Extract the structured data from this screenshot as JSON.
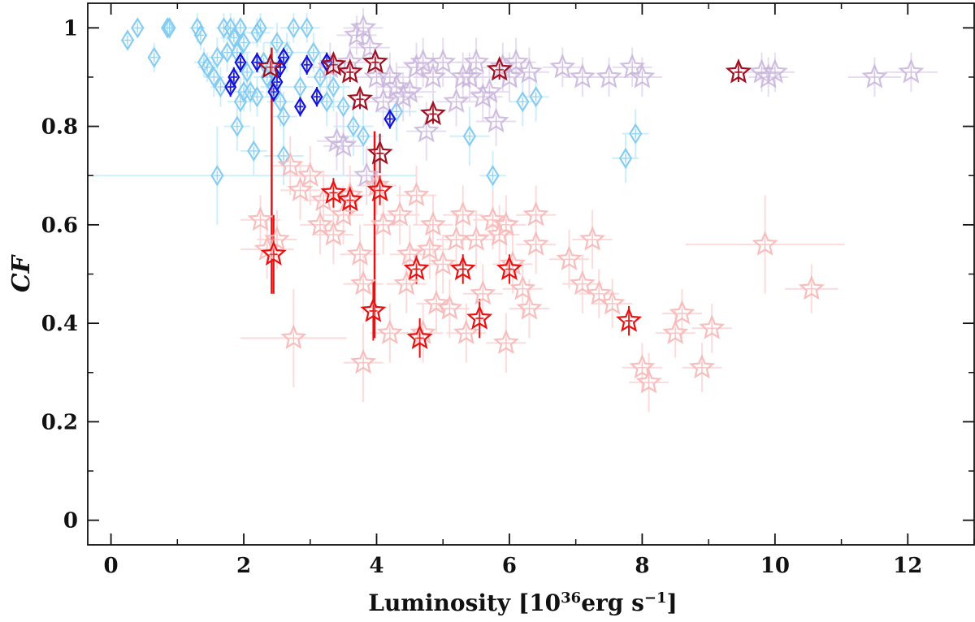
{
  "chart_data": {
    "type": "scatter",
    "xlabel_main": "Luminosity [10",
    "xlabel_exp": "36",
    "xlabel_unit": "erg s",
    "xlabel_unit_exp": "−1",
    "xlabel_close": "]",
    "ylabel": "CF",
    "xlim": [
      -0.35,
      13.0
    ],
    "ylim": [
      -0.05,
      1.05
    ],
    "xticks": [
      0,
      2,
      4,
      6,
      8,
      10,
      12
    ],
    "yticks": [
      0,
      0.2,
      0.4,
      0.6,
      0.8,
      1
    ],
    "ytick_labels": [
      "0",
      "0.2",
      "0.4",
      "0.6",
      "0.8",
      "1"
    ],
    "grid": false,
    "legend": "none",
    "colors": {
      "light_blue": "#7cc8f0",
      "blue": "#1010d8",
      "lavender": "#c8b4dc",
      "dark_red": "#a01020",
      "pink": "#f8b8b8",
      "red": "#e81010"
    },
    "series": [
      {
        "marker": "diamond",
        "color": "#7cc8f0",
        "errcolor": "#c8eefc",
        "opacity": 0.9,
        "size": 11,
        "points": [
          [
            0.25,
            0.975,
            0.1,
            0.02
          ],
          [
            0.4,
            1.0,
            0.1,
            0.02
          ],
          [
            0.65,
            0.94,
            0.1,
            0.03
          ],
          [
            0.85,
            1.0,
            0.08,
            0.02
          ],
          [
            0.88,
            1.0,
            0.08,
            0.02
          ],
          [
            1.3,
            1.0,
            0.12,
            0.03
          ],
          [
            1.35,
            0.985,
            0.1,
            0.03
          ],
          [
            1.4,
            0.93,
            0.15,
            0.03
          ],
          [
            1.45,
            0.92,
            0.15,
            0.03
          ],
          [
            1.55,
            0.9,
            0.15,
            0.04
          ],
          [
            1.6,
            0.94,
            0.15,
            0.04
          ],
          [
            1.65,
            0.88,
            0.15,
            0.04
          ],
          [
            1.7,
            1.0,
            0.12,
            0.03
          ],
          [
            1.75,
            0.95,
            0.15,
            0.04
          ],
          [
            1.8,
            1.0,
            0.15,
            0.03
          ],
          [
            1.85,
            0.98,
            0.2,
            0.04
          ],
          [
            1.9,
            0.95,
            0.2,
            0.04
          ],
          [
            1.9,
            0.8,
            0.2,
            0.05
          ],
          [
            1.95,
            0.85,
            0.2,
            0.05
          ],
          [
            2.0,
            0.87,
            0.2,
            0.04
          ],
          [
            2.05,
            0.91,
            0.2,
            0.04
          ],
          [
            2.1,
            0.87,
            0.2,
            0.04
          ],
          [
            2.15,
            0.75,
            0.2,
            0.05
          ],
          [
            2.2,
            0.86,
            0.2,
            0.04
          ],
          [
            2.25,
            1.0,
            0.2,
            0.03
          ],
          [
            2.3,
            0.93,
            0.2,
            0.04
          ],
          [
            2.35,
            0.9,
            0.2,
            0.04
          ],
          [
            2.4,
            0.92,
            0.2,
            0.05
          ],
          [
            2.5,
            0.97,
            0.2,
            0.04
          ],
          [
            2.55,
            0.85,
            0.2,
            0.05
          ],
          [
            2.6,
            0.82,
            0.2,
            0.05
          ],
          [
            2.65,
            0.95,
            0.2,
            0.04
          ],
          [
            2.75,
            1.0,
            0.2,
            0.03
          ],
          [
            2.85,
            0.88,
            0.2,
            0.05
          ],
          [
            2.95,
            1.0,
            0.2,
            0.03
          ],
          [
            3.05,
            0.95,
            0.2,
            0.04
          ],
          [
            3.15,
            0.9,
            0.2,
            0.05
          ],
          [
            3.25,
            0.85,
            0.2,
            0.05
          ],
          [
            3.35,
            0.88,
            0.25,
            0.05
          ],
          [
            3.5,
            0.84,
            0.3,
            0.06
          ],
          [
            3.65,
            0.8,
            0.3,
            0.06
          ],
          [
            3.8,
            0.78,
            0.3,
            0.06
          ],
          [
            1.6,
            0.7,
            3.0,
            0.1
          ],
          [
            2.6,
            0.74,
            0.3,
            0.06
          ],
          [
            4.3,
            0.83,
            0.3,
            0.06
          ],
          [
            5.4,
            0.78,
            0.3,
            0.06
          ],
          [
            5.75,
            0.7,
            0.2,
            0.05
          ],
          [
            6.2,
            0.85,
            0.2,
            0.05
          ],
          [
            6.4,
            0.86,
            0.2,
            0.05
          ],
          [
            7.75,
            0.735,
            0.2,
            0.05
          ],
          [
            7.9,
            0.785,
            0.2,
            0.05
          ],
          [
            2.0,
            0.97,
            0.2,
            0.04
          ],
          [
            2.2,
            0.99,
            0.2,
            0.03
          ],
          [
            1.95,
            1.0,
            0.15,
            0.02
          ],
          [
            2.45,
            0.88,
            0.2,
            0.04
          ]
        ]
      },
      {
        "marker": "star",
        "color": "#c8b4dc",
        "errcolor": "#e4d8ee",
        "opacity": 0.85,
        "size": 14,
        "points": [
          [
            3.6,
            0.93,
            0.3,
            0.04
          ],
          [
            3.7,
            0.985,
            0.3,
            0.04
          ],
          [
            3.8,
            1.0,
            0.3,
            0.04
          ],
          [
            3.9,
            0.96,
            0.3,
            0.04
          ],
          [
            4.0,
            0.9,
            0.3,
            0.05
          ],
          [
            4.1,
            0.85,
            0.3,
            0.05
          ],
          [
            4.2,
            0.9,
            0.3,
            0.05
          ],
          [
            4.3,
            0.88,
            0.3,
            0.05
          ],
          [
            4.5,
            0.87,
            0.4,
            0.05
          ],
          [
            4.6,
            0.92,
            0.3,
            0.05
          ],
          [
            4.7,
            0.93,
            0.3,
            0.05
          ],
          [
            4.85,
            0.9,
            0.3,
            0.05
          ],
          [
            5.0,
            0.93,
            0.3,
            0.05
          ],
          [
            5.2,
            0.85,
            0.3,
            0.05
          ],
          [
            5.4,
            0.9,
            0.3,
            0.05
          ],
          [
            5.5,
            0.93,
            0.3,
            0.05
          ],
          [
            5.7,
            0.87,
            0.3,
            0.05
          ],
          [
            5.8,
            0.81,
            0.3,
            0.05
          ],
          [
            5.9,
            0.92,
            0.3,
            0.05
          ],
          [
            6.0,
            0.9,
            0.3,
            0.05
          ],
          [
            6.1,
            0.93,
            0.3,
            0.05
          ],
          [
            6.3,
            0.91,
            0.3,
            0.05
          ],
          [
            6.8,
            0.92,
            0.3,
            0.04
          ],
          [
            7.1,
            0.9,
            0.3,
            0.04
          ],
          [
            7.5,
            0.9,
            0.3,
            0.04
          ],
          [
            7.85,
            0.92,
            0.3,
            0.04
          ],
          [
            8.0,
            0.9,
            0.3,
            0.04
          ],
          [
            9.8,
            0.91,
            0.3,
            0.04
          ],
          [
            9.9,
            0.9,
            0.3,
            0.04
          ],
          [
            10.0,
            0.91,
            0.3,
            0.04
          ],
          [
            11.5,
            0.9,
            0.4,
            0.04
          ],
          [
            12.05,
            0.91,
            0.4,
            0.04
          ],
          [
            3.4,
            0.77,
            0.3,
            0.06
          ],
          [
            3.5,
            0.76,
            0.3,
            0.06
          ],
          [
            3.85,
            0.7,
            0.3,
            0.06
          ],
          [
            4.4,
            0.86,
            0.3,
            0.05
          ],
          [
            5.6,
            0.86,
            0.3,
            0.05
          ],
          [
            3.3,
            0.92,
            0.3,
            0.05
          ],
          [
            4.75,
            0.79,
            0.3,
            0.06
          ],
          [
            5.3,
            0.9,
            0.3,
            0.05
          ]
        ]
      },
      {
        "marker": "star",
        "color": "#f8b8b8",
        "errcolor": "#fbd8d8",
        "opacity": 0.9,
        "size": 14,
        "points": [
          [
            2.25,
            0.61,
            0.3,
            0.05
          ],
          [
            2.35,
            0.55,
            0.4,
            0.06
          ],
          [
            2.5,
            0.57,
            0.3,
            0.06
          ],
          [
            2.7,
            0.72,
            0.3,
            0.06
          ],
          [
            2.75,
            0.37,
            0.8,
            0.1
          ],
          [
            2.85,
            0.67,
            0.3,
            0.06
          ],
          [
            3.0,
            0.7,
            0.3,
            0.06
          ],
          [
            3.15,
            0.6,
            0.3,
            0.06
          ],
          [
            3.2,
            0.65,
            0.3,
            0.06
          ],
          [
            3.35,
            0.58,
            0.3,
            0.06
          ],
          [
            3.5,
            0.62,
            0.3,
            0.06
          ],
          [
            3.6,
            0.66,
            0.3,
            0.06
          ],
          [
            3.75,
            0.54,
            0.3,
            0.06
          ],
          [
            3.8,
            0.48,
            0.3,
            0.06
          ],
          [
            3.8,
            0.32,
            0.3,
            0.08
          ],
          [
            4.0,
            0.68,
            0.3,
            0.06
          ],
          [
            4.1,
            0.6,
            0.3,
            0.06
          ],
          [
            4.2,
            0.38,
            0.3,
            0.06
          ],
          [
            4.35,
            0.62,
            0.3,
            0.06
          ],
          [
            4.5,
            0.54,
            0.3,
            0.06
          ],
          [
            4.6,
            0.66,
            0.3,
            0.06
          ],
          [
            4.7,
            0.38,
            0.3,
            0.06
          ],
          [
            4.8,
            0.55,
            0.3,
            0.06
          ],
          [
            4.85,
            0.6,
            0.3,
            0.06
          ],
          [
            4.9,
            0.44,
            0.3,
            0.06
          ],
          [
            5.0,
            0.52,
            0.3,
            0.06
          ],
          [
            5.1,
            0.43,
            0.3,
            0.06
          ],
          [
            5.2,
            0.57,
            0.3,
            0.06
          ],
          [
            5.3,
            0.62,
            0.3,
            0.06
          ],
          [
            5.35,
            0.38,
            0.3,
            0.06
          ],
          [
            5.5,
            0.57,
            0.3,
            0.06
          ],
          [
            5.6,
            0.46,
            0.3,
            0.06
          ],
          [
            5.75,
            0.61,
            0.3,
            0.06
          ],
          [
            5.85,
            0.58,
            0.3,
            0.06
          ],
          [
            5.95,
            0.6,
            0.3,
            0.06
          ],
          [
            6.05,
            0.52,
            0.3,
            0.06
          ],
          [
            6.2,
            0.47,
            0.3,
            0.06
          ],
          [
            6.3,
            0.43,
            0.3,
            0.06
          ],
          [
            6.4,
            0.56,
            0.3,
            0.06
          ],
          [
            6.4,
            0.62,
            0.3,
            0.06
          ],
          [
            6.9,
            0.53,
            0.3,
            0.06
          ],
          [
            7.1,
            0.48,
            0.3,
            0.06
          ],
          [
            7.25,
            0.57,
            0.3,
            0.06
          ],
          [
            7.35,
            0.46,
            0.3,
            0.05
          ],
          [
            7.55,
            0.44,
            0.3,
            0.05
          ],
          [
            8.0,
            0.31,
            0.3,
            0.05
          ],
          [
            8.1,
            0.28,
            0.3,
            0.06
          ],
          [
            8.5,
            0.38,
            0.3,
            0.05
          ],
          [
            8.6,
            0.42,
            0.3,
            0.05
          ],
          [
            8.9,
            0.31,
            0.3,
            0.05
          ],
          [
            9.05,
            0.39,
            0.3,
            0.05
          ],
          [
            9.85,
            0.56,
            1.2,
            0.1
          ],
          [
            10.55,
            0.47,
            0.4,
            0.05
          ],
          [
            4.45,
            0.48,
            0.3,
            0.06
          ],
          [
            5.95,
            0.36,
            0.3,
            0.06
          ]
        ]
      },
      {
        "marker": "diamond",
        "color": "#1010d8",
        "errcolor": "#1010d8",
        "opacity": 1,
        "size": 10,
        "points": [
          [
            1.8,
            0.88,
            0.05,
            0.02
          ],
          [
            1.85,
            0.9,
            0.05,
            0.02
          ],
          [
            1.95,
            0.93,
            0.05,
            0.02
          ],
          [
            2.2,
            0.93,
            0.05,
            0.02
          ],
          [
            2.45,
            0.87,
            0.05,
            0.02
          ],
          [
            2.5,
            0.89,
            0.05,
            0.02
          ],
          [
            2.55,
            0.92,
            0.05,
            0.02
          ],
          [
            2.6,
            0.94,
            0.05,
            0.02
          ],
          [
            2.85,
            0.84,
            0.05,
            0.02
          ],
          [
            2.95,
            0.925,
            0.05,
            0.02
          ],
          [
            3.1,
            0.86,
            0.05,
            0.02
          ],
          [
            3.25,
            0.93,
            0.05,
            0.02
          ],
          [
            4.2,
            0.815,
            0.05,
            0.02
          ]
        ]
      },
      {
        "marker": "star",
        "color": "#a01020",
        "errcolor": "#a01020",
        "opacity": 1,
        "size": 14,
        "points": [
          [
            2.4,
            0.92,
            0.05,
            0.02
          ],
          [
            3.35,
            0.925,
            0.05,
            0.02
          ],
          [
            3.6,
            0.91,
            0.05,
            0.02
          ],
          [
            3.75,
            0.855,
            0.05,
            0.02
          ],
          [
            3.98,
            0.93,
            0.05,
            0.02
          ],
          [
            4.05,
            0.745,
            0.05,
            0.04
          ],
          [
            4.85,
            0.825,
            0.05,
            0.02
          ],
          [
            5.85,
            0.915,
            0.05,
            0.02
          ],
          [
            9.45,
            0.91,
            0.05,
            0.02
          ]
        ]
      },
      {
        "marker": "star",
        "color": "#e81010",
        "errcolor": "#e81010",
        "opacity": 1,
        "size": 14,
        "points": [
          [
            2.45,
            0.54,
            0.05,
            0.08
          ],
          [
            3.35,
            0.665,
            0.05,
            0.03
          ],
          [
            3.6,
            0.65,
            0.05,
            0.03
          ],
          [
            3.95,
            0.425,
            0.05,
            0.06
          ],
          [
            4.05,
            0.67,
            0.05,
            0.03
          ],
          [
            4.6,
            0.51,
            0.05,
            0.03
          ],
          [
            4.65,
            0.37,
            0.05,
            0.04
          ],
          [
            5.3,
            0.51,
            0.05,
            0.03
          ],
          [
            5.55,
            0.41,
            0.05,
            0.04
          ],
          [
            6.0,
            0.51,
            0.05,
            0.03
          ],
          [
            7.8,
            0.405,
            0.05,
            0.03
          ]
        ]
      }
    ],
    "vertical_lines": [
      {
        "x": 2.42,
        "y1": 0.46,
        "y2": 0.96,
        "color": "#e81010"
      },
      {
        "x": 3.97,
        "y1": 0.37,
        "y2": 0.79,
        "color": "#e81010"
      }
    ]
  }
}
